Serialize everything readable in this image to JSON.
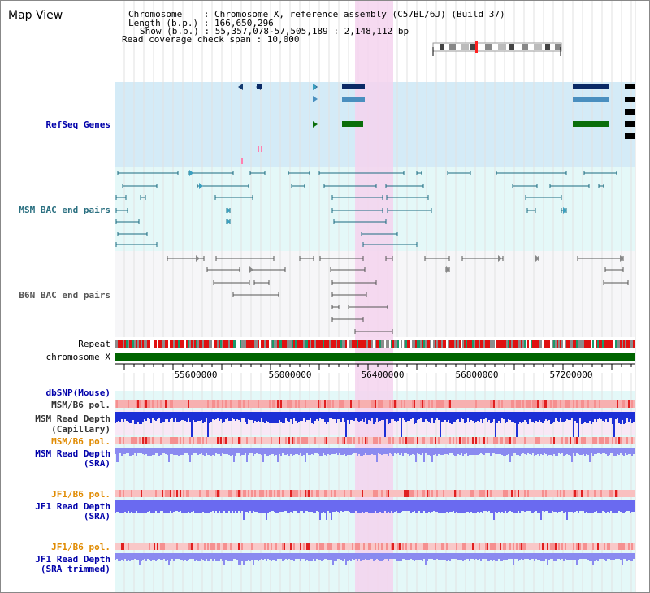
{
  "title": "Map View",
  "info": {
    "chromosome": "Chromosome    : Chromosome X, reference assembly (C57BL/6J) (Build 37)",
    "length": "Length (b.p.) : 166,650,296",
    "show": "Show (b.p.) : 55,357,078-57,505,189 : 2,148,112 bp",
    "span": "Read coverage check span : 10,000"
  },
  "tracks": {
    "refseq": "RefSeq Genes",
    "msm_bac": "MSM BAC end pairs",
    "b6n_bac": "B6N BAC end pairs",
    "repeat": "Repeat",
    "chromosome": "chromosome X",
    "dbsnp": "dbSNP(Mouse)",
    "msm_b6_pol_1": "MSM/B6 pol.",
    "msm_read_depth_cap_1": "MSM Read Depth",
    "msm_read_depth_cap_2": "(Capillary)",
    "msm_b6_pol_2": "MSM/B6 pol.",
    "msm_read_depth_sra_1": "MSM Read Depth",
    "msm_read_depth_sra_2": "(SRA)",
    "jf1_b6_pol_1": "JF1/B6 pol.",
    "jf1_read_depth_sra_1": "JF1 Read Depth",
    "jf1_read_depth_sra_2": "(SRA)",
    "jf1_b6_pol_2": "JF1/B6 pol.",
    "jf1_read_depth_trim_1": "JF1 Read Depth",
    "jf1_read_depth_trim_2": "(SRA trimmed)"
  },
  "axis": {
    "ticks": [
      "55600000",
      "56000000",
      "56400000",
      "56800000",
      "57200000"
    ]
  },
  "colors": {
    "highlight": "#f5d3ef",
    "refseq_bg": "#d4ebf7",
    "bac_bg": "#e4f8f8",
    "b6n_bg": "#f6f6f8",
    "lower_bg": "#e4f8f8",
    "gene_navy": "#0a2a66",
    "gene_blue": "#4a8fbf",
    "gene_green": "#0a6e0a",
    "chrom_green": "#006400"
  }
}
